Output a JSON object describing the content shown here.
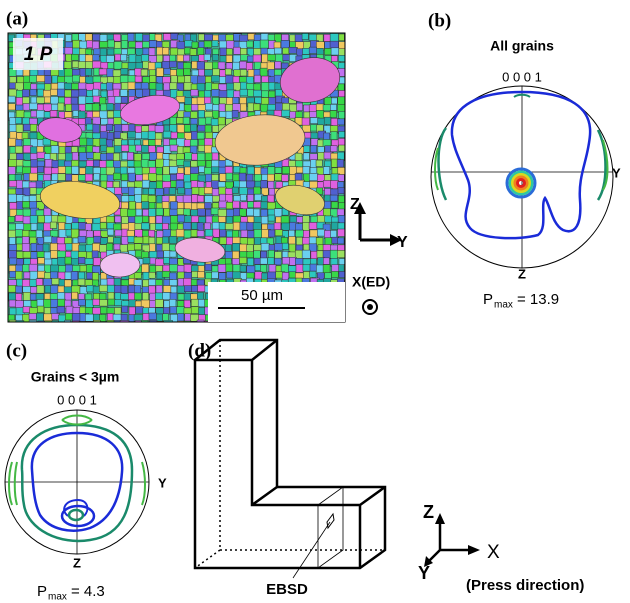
{
  "panel_a": {
    "label": "(a)",
    "sample": "1 P",
    "scale_bar": "50 µm",
    "axes": {
      "vertical": "Z",
      "horizontal": "Y",
      "normal": "X(ED)"
    }
  },
  "panel_b": {
    "label": "(b)",
    "title": "All grains",
    "pole": "0 0 0 1",
    "right_axis": "Y",
    "bottom_axis": "Z",
    "pmax": {
      "symbol": "P",
      "subscript": "max",
      "text": "= 13.9"
    }
  },
  "panel_c": {
    "label": "(c)",
    "title": "Grains < 3µm",
    "pole": "0 0 0 1",
    "right_axis": "Y",
    "bottom_axis": "Z",
    "pmax": {
      "symbol": "P",
      "subscript": "max",
      "text": "= 4.3"
    }
  },
  "panel_d": {
    "label": "(d)",
    "marker": "EBSD",
    "axes": {
      "z": "Z",
      "x": "X",
      "y": "Y"
    },
    "note": "(Press direction)"
  }
}
